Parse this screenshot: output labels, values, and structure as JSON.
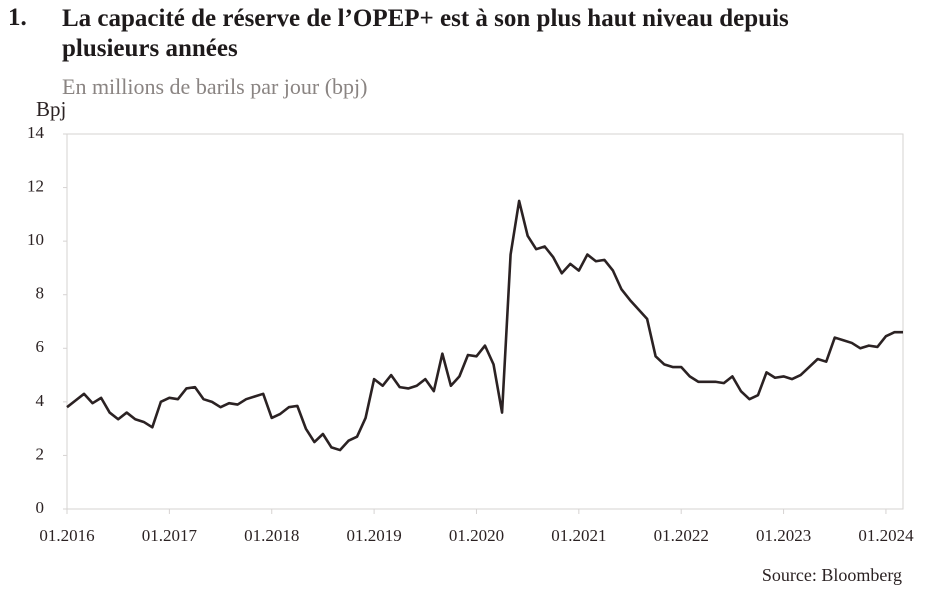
{
  "chart_data": {
    "type": "line",
    "figure_number": "1.",
    "title": "La capacité de réserve de l’OPEP+ est à son plus haut niveau depuis plusieurs années",
    "subtitle": "En millions de barils par jour (bpj)",
    "y_axis_label": "Bpj",
    "source": "Source: Bloomberg",
    "categories": [
      "01.2016",
      null,
      null,
      null,
      null,
      null,
      null,
      null,
      null,
      null,
      null,
      null,
      "01.2017",
      null,
      null,
      null,
      null,
      null,
      null,
      null,
      null,
      null,
      null,
      null,
      "01.2018",
      null,
      null,
      null,
      null,
      null,
      null,
      null,
      null,
      null,
      null,
      null,
      "01.2019",
      null,
      null,
      null,
      null,
      null,
      null,
      null,
      null,
      null,
      null,
      null,
      "01.2020",
      null,
      null,
      null,
      null,
      null,
      null,
      null,
      null,
      null,
      null,
      null,
      "01.2021",
      null,
      null,
      null,
      null,
      null,
      null,
      null,
      null,
      null,
      null,
      null,
      "01.2022",
      null,
      null,
      null,
      null,
      null,
      null,
      null,
      null,
      null,
      null,
      null,
      "01.2023",
      null,
      null,
      null,
      null,
      null,
      null,
      null,
      null,
      null,
      null,
      null,
      "01.2024",
      null,
      null
    ],
    "series": [
      {
        "name": "Capacité de réserve",
        "color": "#2b2223",
        "values": [
          3.8,
          4.05,
          4.3,
          3.95,
          4.15,
          3.6,
          3.35,
          3.6,
          3.35,
          3.25,
          3.05,
          4.0,
          4.15,
          4.1,
          4.5,
          4.55,
          4.1,
          4.0,
          3.8,
          3.95,
          3.9,
          4.1,
          4.2,
          4.3,
          3.4,
          3.55,
          3.8,
          3.85,
          3.0,
          2.5,
          2.8,
          2.3,
          2.2,
          2.55,
          2.7,
          3.4,
          4.85,
          4.6,
          5.0,
          4.55,
          4.5,
          4.6,
          4.85,
          4.4,
          5.8,
          4.6,
          4.95,
          5.75,
          5.7,
          6.1,
          5.4,
          3.6,
          9.5,
          11.5,
          10.2,
          9.7,
          9.8,
          9.4,
          8.8,
          9.15,
          8.9,
          9.5,
          9.25,
          9.3,
          8.9,
          8.2,
          7.8,
          7.45,
          7.1,
          5.7,
          5.4,
          5.3,
          5.3,
          4.95,
          4.75,
          4.75,
          4.75,
          4.7,
          4.95,
          4.4,
          4.1,
          4.25,
          5.1,
          4.9,
          4.95,
          4.85,
          5.0,
          5.3,
          5.6,
          5.5,
          6.4,
          6.3,
          6.2,
          6.0,
          6.1,
          6.05,
          6.45,
          6.6,
          6.6
        ]
      }
    ],
    "ylim": [
      0,
      14
    ],
    "yticks": [
      0,
      2,
      4,
      6,
      8,
      10,
      12,
      14
    ],
    "grid": false
  }
}
